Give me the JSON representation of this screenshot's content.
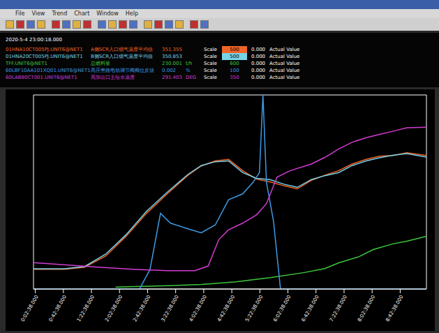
{
  "window": {
    "menu": [
      "File",
      "View",
      "Trend",
      "Chart",
      "Window",
      "Help"
    ]
  },
  "header": {
    "timestamp": "2020-5-4 23:00:18.000",
    "scale_label": "Scale",
    "actual_label": "Actual Value"
  },
  "chart_data": {
    "type": "line",
    "tick_labels": "x",
    "xlim": [
      0,
      560
    ],
    "xticks": [
      {
        "value": 2.6,
        "label": "0:02:38.000"
      },
      {
        "value": 42.6,
        "label": "0:42:38.000"
      },
      {
        "value": 82.6,
        "label": "1:22:38.000"
      },
      {
        "value": 122.6,
        "label": "2:02:38.000"
      },
      {
        "value": 162.6,
        "label": "2:42:38.000"
      },
      {
        "value": 202.6,
        "label": "3:22:38.000"
      },
      {
        "value": 242.6,
        "label": "4:02:38.000"
      },
      {
        "value": 282.6,
        "label": "4:42:38.000"
      },
      {
        "value": 322.6,
        "label": "5:22:38.000"
      },
      {
        "value": 362.6,
        "label": "6:02:38.000"
      },
      {
        "value": 402.6,
        "label": "6:42:38.000"
      },
      {
        "value": 442.6,
        "label": "7:22:38.000"
      },
      {
        "value": 482.6,
        "label": "8:02:38.000"
      },
      {
        "value": 522.6,
        "label": "8:42:38.000"
      }
    ],
    "series": [
      {
        "name": "01HNA10CT005PJ.UNIT6@NET1",
        "description": "A侧SCR入口烟气温度平均值",
        "current": 351.355,
        "color": "#f06428",
        "ylim": [
          0,
          500
        ],
        "ylim_labels": [
          "0.000",
          "500"
        ],
        "x": [
          0,
          44,
          73,
          103,
          132,
          161,
          191,
          220,
          239,
          259,
          278,
          298,
          318,
          337,
          357,
          376,
          396,
          415,
          435,
          454,
          474,
          493,
          513,
          532,
          560
        ],
        "values": [
          51,
          51,
          56,
          85,
          136,
          195,
          246,
          293,
          317,
          330,
          334,
          305,
          283,
          276,
          266,
          258,
          280,
          293,
          305,
          322,
          334,
          342,
          344,
          351,
          344
        ]
      },
      {
        "name": "01HNA20CT005PJ.UNIT6@NET1",
        "description": "B侧SCR入口烟气温度平均值",
        "current": 350.853,
        "color": "#78d2e6",
        "ylim": [
          0,
          500
        ],
        "ylim_labels": [
          "0.000",
          "500"
        ],
        "x": [
          0,
          44,
          73,
          103,
          132,
          161,
          191,
          220,
          239,
          259,
          278,
          298,
          318,
          337,
          357,
          376,
          396,
          415,
          435,
          454,
          474,
          493,
          513,
          532,
          560
        ],
        "values": [
          52,
          52,
          58,
          90,
          140,
          200,
          250,
          295,
          318,
          328,
          330,
          300,
          285,
          282,
          270,
          262,
          282,
          292,
          300,
          318,
          330,
          338,
          345,
          349,
          340
        ]
      },
      {
        "name": "TFF.UNIT6@NET1",
        "description": "总燃料量",
        "current": 230.001,
        "unit": "t/h",
        "color": "#3cc83c",
        "ylim": [
          0,
          600
        ],
        "ylim_labels": [
          "0.000",
          "600"
        ],
        "x": [
          117,
          191,
          239,
          288,
          337,
          386,
          415,
          435,
          464,
          484,
          513,
          532,
          560
        ],
        "values": [
          6,
          10,
          14,
          22,
          35,
          51,
          63,
          81,
          100,
          122,
          140,
          148,
          163
        ]
      },
      {
        "name": "60LBF10AA101XQ01.UNIT6@NET1",
        "description": "高压旁路电动调节阀阀位反馈",
        "current": 0.002,
        "unit": "%",
        "color": "#3c9be6",
        "ylim": [
          0,
          100
        ],
        "ylim_labels": [
          "0.000",
          "100"
        ],
        "x": [
          0,
          142,
          151,
          166,
          181,
          195,
          220,
          239,
          259,
          278,
          298,
          313,
          322,
          327,
          332,
          342,
          352,
          361,
          560
        ],
        "values": [
          0,
          0,
          0,
          10,
          39,
          34,
          31,
          29,
          33,
          46,
          49,
          55,
          60,
          100,
          55,
          35,
          0,
          0,
          0
        ]
      },
      {
        "name": "60LAB80CT001.UNIT6@NET1",
        "description": "高加出口主给水温度",
        "current": 291.403,
        "unit": "DEG",
        "color": "#d23cd2",
        "ylim": [
          0,
          350
        ],
        "ylim_labels": [
          "0.000",
          "350"
        ],
        "x": [
          0,
          44,
          93,
          142,
          191,
          230,
          249,
          264,
          278,
          298,
          318,
          332,
          347,
          366,
          396,
          415,
          435,
          454,
          474,
          493,
          513,
          532,
          560
        ],
        "values": [
          47.5,
          43.9,
          39.2,
          35.6,
          33.2,
          33.2,
          41.5,
          89,
          106.8,
          118.6,
          134,
          154,
          201.7,
          213.6,
          225.4,
          237.3,
          252.7,
          264.6,
          272.9,
          278.8,
          284.7,
          290.7,
          291.9
        ]
      }
    ]
  }
}
